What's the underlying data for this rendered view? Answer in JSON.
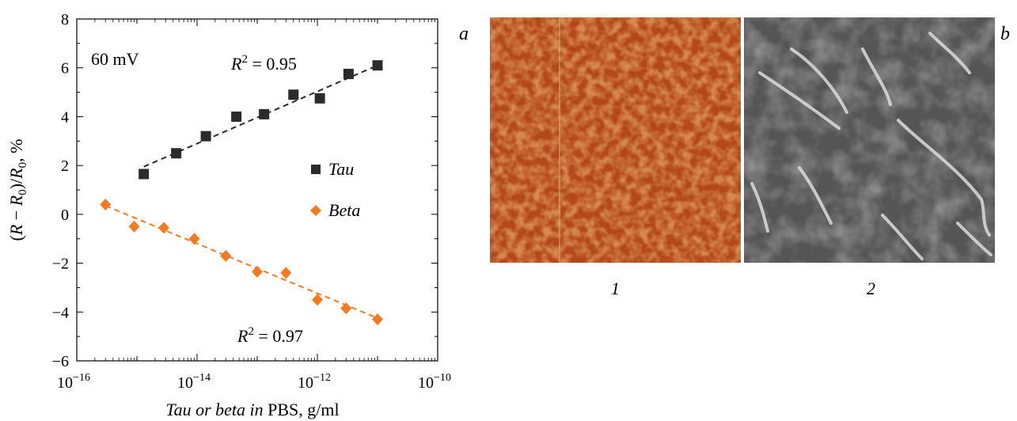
{
  "chart_data": {
    "type": "scatter",
    "xscale": "log",
    "xlim": [
      1e-16,
      1e-10
    ],
    "ylim": [
      -6,
      8
    ],
    "ylabel": "(R − R0)/R0, %",
    "xlabel": "Tau or beta in PBS, g/ml",
    "xlabel_italic": "Tau or beta in",
    "xlabel_plain": " PBS, g/ml",
    "y_ticks": [
      "8",
      "6",
      "4",
      "2",
      "0",
      "−2",
      "−4",
      "−6"
    ],
    "x_tick_base": "10",
    "x_tick_exponents": [
      "−16",
      "−14",
      "−12",
      "−10"
    ],
    "annotation": "60 mV",
    "grid": false,
    "legend_position": "center-right",
    "series": [
      {
        "name": "Tau",
        "marker": "square",
        "color": "#2b2b2b",
        "x": [
          1.3e-15,
          4.5e-15,
          1.4e-14,
          4.5e-14,
          1.3e-13,
          4e-13,
          1.1e-12,
          3.3e-12,
          1e-11
        ],
        "y": [
          1.65,
          2.5,
          3.2,
          4.0,
          4.1,
          4.9,
          4.75,
          5.75,
          6.1
        ],
        "fit": {
          "x": [
            1.3e-15,
            1e-11
          ],
          "y": [
            1.95,
            6.1
          ]
        },
        "r2_label": "R² = 0.95",
        "r2_sup": "2",
        "r2_value": " = 0.95"
      },
      {
        "name": "Beta",
        "marker": "diamond",
        "color": "#f47a20",
        "x": [
          3e-16,
          9e-16,
          2.8e-15,
          9e-15,
          3e-14,
          1e-13,
          3e-13,
          1e-12,
          3e-12,
          1e-11
        ],
        "y": [
          0.4,
          -0.5,
          -0.55,
          -1.0,
          -1.7,
          -2.35,
          -2.4,
          -3.5,
          -3.85,
          -4.3
        ],
        "fit": {
          "x": [
            3e-16,
            1e-11
          ],
          "y": [
            0.35,
            -4.25
          ]
        },
        "r2_label": "R² = 0.97",
        "r2_sup": "2",
        "r2_value": " = 0.97"
      }
    ]
  },
  "panels": {
    "letter_a": "a",
    "letter_b": "b",
    "image1_caption": "1",
    "image2_caption": "2",
    "image1_colors": [
      "#b3491a",
      "#f2a15a"
    ],
    "image2_colors": [
      "#555555",
      "#9a9a9a"
    ]
  }
}
